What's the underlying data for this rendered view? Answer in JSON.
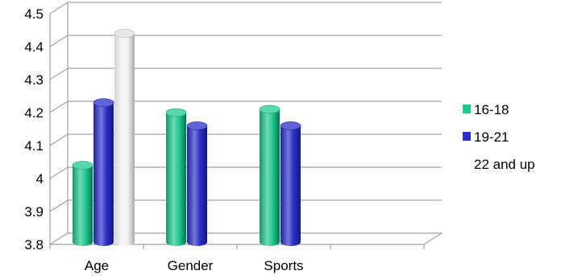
{
  "chart_data": {
    "type": "bar",
    "style": "3d-cylinder",
    "categories": [
      "Age",
      "Gender",
      "Sports",
      ""
    ],
    "series": [
      {
        "name": "16-18",
        "color": "#1fc98f",
        "values": [
          4.04,
          4.2,
          4.21,
          null
        ]
      },
      {
        "name": "19-21",
        "color": "#2a2fc9",
        "values": [
          4.23,
          4.16,
          4.16,
          null
        ]
      },
      {
        "name": "22 and up",
        "color": "#f2f2f2",
        "values": [
          4.44,
          null,
          null,
          null
        ]
      }
    ],
    "y_ticks": [
      "3.8",
      "3.9",
      "4",
      "4.1",
      "4.2",
      "4.3",
      "4.4",
      "4.5"
    ],
    "ylim": [
      3.8,
      4.5
    ],
    "grid": true,
    "legend_position": "right"
  }
}
